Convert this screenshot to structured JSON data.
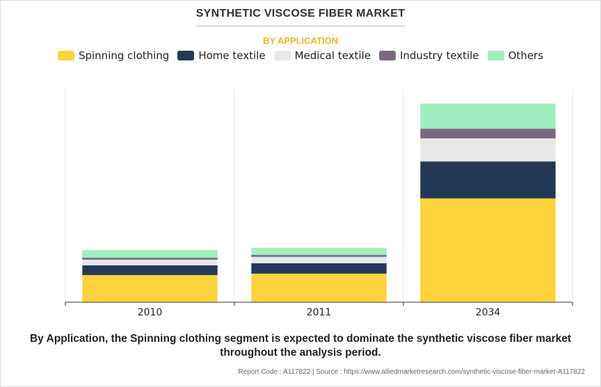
{
  "title": "SYNTHETIC VISCOSE FIBER MARKET",
  "subtitle": "BY APPLICATION",
  "colors": {
    "title": "#333333",
    "subtitle": "#f5b323"
  },
  "chart_data": {
    "type": "bar",
    "stacked": true,
    "categories": [
      "2010",
      "2011",
      "2034"
    ],
    "series": [
      {
        "name": "Spinning clothing",
        "color": "#fdd33b",
        "values": [
          39,
          41,
          149
        ]
      },
      {
        "name": "Home textile",
        "color": "#253858",
        "values": [
          14,
          15,
          53
        ]
      },
      {
        "name": "Medical textile",
        "color": "#e8e8e8",
        "values": [
          8,
          9,
          33
        ]
      },
      {
        "name": "Industry textile",
        "color": "#7a6a80",
        "values": [
          3,
          3,
          14
        ]
      },
      {
        "name": "Others",
        "color": "#a0eebf",
        "values": [
          11,
          10,
          36
        ]
      }
    ],
    "ylim": [
      0,
      306
    ],
    "grid": "vertical",
    "legend_position": "top"
  },
  "footnote": "By Application, the Spinning clothing segment is expected to dominate the synthetic viscose fiber market throughout the analysis period.",
  "source": "Report Code : A117822  |  Source : https://www.alliedmarketresearch.com/synthetic-viscose-fiber-market-A117822"
}
